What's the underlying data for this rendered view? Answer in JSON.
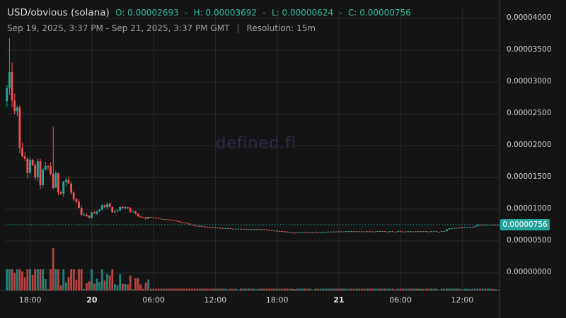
{
  "header": {
    "pair": "USD/obvious (solana)",
    "open": "O: 0.00002693",
    "high": "H: 0.00003692",
    "low": "L: 0.00000624",
    "close": "C: 0.00000756",
    "range": "Sep 19, 2025, 3:37 PM - Sep 21, 2025, 3:37 PM GMT",
    "separator": "|",
    "resolution": "Resolution: 15m"
  },
  "watermark": "defined.fi",
  "current_price": "0.00000756",
  "colors": {
    "up": "#26a69a",
    "down": "#ef5350",
    "grid": "#2b2b2b",
    "background": "#141414"
  },
  "chart_data": {
    "type": "candlestick",
    "title": "",
    "ylabel": "",
    "xlabel": "",
    "y_ticks": [
      "0.00004000",
      "0.00003500",
      "0.00003000",
      "0.00002500",
      "0.00002000",
      "0.00001500",
      "0.00001000",
      "0.00000500",
      "0.00000000"
    ],
    "y_tick_values": [
      4e-05,
      3.5e-05,
      3e-05,
      2.5e-05,
      2e-05,
      1.5e-05,
      1e-05,
      5e-06,
      0
    ],
    "ylim": [
      0,
      4.18e-05
    ],
    "x_ticks": [
      {
        "label": "18:00",
        "t": 2.38,
        "bold": false
      },
      {
        "label": "20",
        "t": 8.38,
        "bold": true
      },
      {
        "label": "06:00",
        "t": 14.38,
        "bold": false
      },
      {
        "label": "12:00",
        "t": 20.38,
        "bold": false
      },
      {
        "label": "18:00",
        "t": 26.38,
        "bold": false
      },
      {
        "label": "21",
        "t": 32.38,
        "bold": true
      },
      {
        "label": "06:00",
        "t": 38.38,
        "bold": false
      },
      {
        "label": "12:00",
        "t": 44.38,
        "bold": false
      }
    ],
    "x_unit": "hours since Sep 19, 2025 3:37 PM GMT",
    "xlim": [
      0,
      48
    ],
    "last_price": 7.56e-06,
    "anchors": [
      [
        0,
        2.7e-05
      ],
      [
        0.15,
        3.05e-05
      ],
      [
        0.35,
        2.6e-05
      ],
      [
        0.55,
        3e-05
      ],
      [
        0.8,
        2.85e-05
      ],
      [
        1.0,
        2.4e-05
      ],
      [
        1.2,
        2.55e-05
      ],
      [
        1.45,
        2.15e-05
      ],
      [
        1.7,
        1.7e-05
      ],
      [
        2.0,
        1.8e-05
      ],
      [
        2.3,
        1.6e-05
      ],
      [
        2.6,
        1.7e-05
      ],
      [
        2.9,
        1.5e-05
      ],
      [
        3.2,
        1.65e-05
      ],
      [
        3.5,
        1.45e-05
      ],
      [
        3.8,
        1.55e-05
      ],
      [
        4.1,
        1.6e-05
      ],
      [
        4.4,
        1.7e-05
      ],
      [
        4.7,
        1.35e-05
      ],
      [
        5.0,
        1.45e-05
      ],
      [
        5.3,
        1.3e-05
      ],
      [
        5.6,
        1.4e-05
      ],
      [
        5.9,
        1.5e-05
      ],
      [
        6.2,
        1.4e-05
      ],
      [
        6.5,
        1.25e-05
      ],
      [
        6.8,
        1.1e-05
      ],
      [
        7.1,
        1e-05
      ],
      [
        7.4,
        9e-06
      ],
      [
        7.8,
        8.6e-06
      ],
      [
        8.3,
        8.9e-06
      ],
      [
        8.8,
        9.7e-06
      ],
      [
        9.3,
        1.01e-05
      ],
      [
        9.8,
        1.08e-05
      ],
      [
        10.3,
        1.02e-05
      ],
      [
        10.8,
        9.5e-06
      ],
      [
        11.3,
        1.03e-05
      ],
      [
        11.8,
        1.05e-05
      ],
      [
        12.3,
        9.9e-06
      ],
      [
        12.8,
        9e-06
      ],
      [
        13.5,
        8.8e-06
      ],
      [
        14.5,
        8.7e-06
      ],
      [
        15.5,
        8.4e-06
      ],
      [
        16.5,
        8.2e-06
      ],
      [
        17.5,
        7.8e-06
      ],
      [
        18.5,
        7.4e-06
      ],
      [
        19.5,
        7.2e-06
      ],
      [
        21,
        7e-06
      ],
      [
        23,
        6.9e-06
      ],
      [
        25,
        6.8e-06
      ],
      [
        26.3,
        6.6e-06
      ],
      [
        28,
        6.3e-06
      ],
      [
        30,
        6.4e-06
      ],
      [
        33,
        6.5e-06
      ],
      [
        36,
        6.5e-06
      ],
      [
        40,
        6.5e-06
      ],
      [
        42.7,
        6.5e-06
      ],
      [
        43.2,
        7e-06
      ],
      [
        45.5,
        7.2e-06
      ],
      [
        46.0,
        7.5e-06
      ],
      [
        48,
        7.56e-06
      ]
    ]
  }
}
